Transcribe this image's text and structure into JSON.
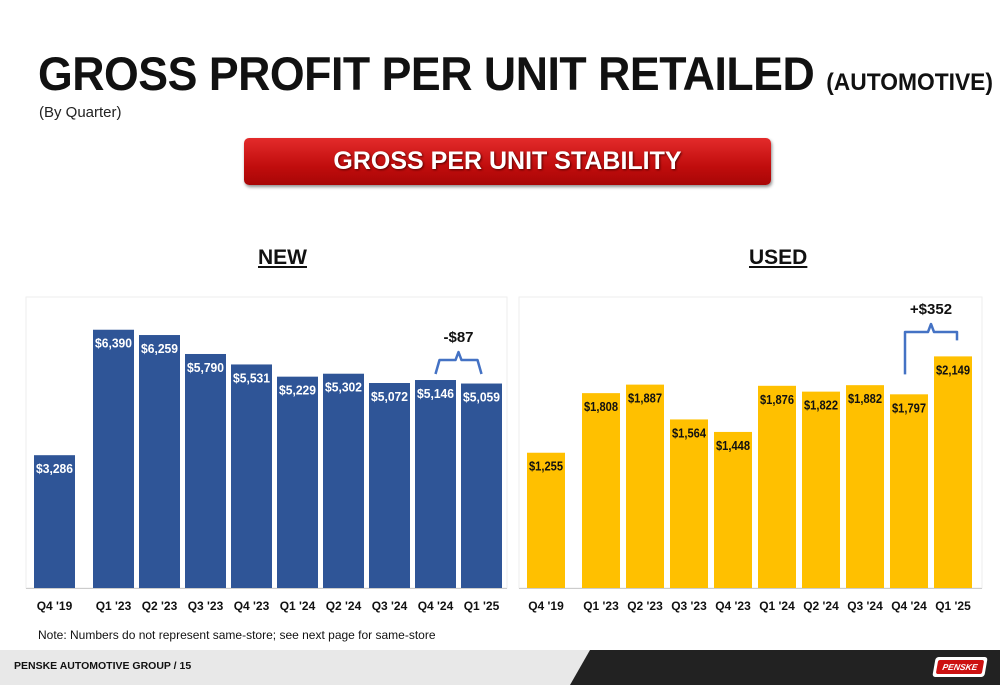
{
  "header": {
    "title": "GROSS PROFIT PER UNIT RETAILED",
    "title_suffix": "(AUTOMOTIVE)",
    "subtitle": "(By Quarter)",
    "banner": "GROSS PER UNIT STABILITY"
  },
  "chart_data": [
    {
      "type": "bar",
      "title": "NEW",
      "categories": [
        "Q4 '19",
        "Q1 '23",
        "Q2 '23",
        "Q3 '23",
        "Q4 '23",
        "Q1 '24",
        "Q2 '24",
        "Q3 '24",
        "Q4 '24",
        "Q1 '25"
      ],
      "values": [
        3286,
        6390,
        6259,
        5790,
        5531,
        5229,
        5302,
        5072,
        5146,
        5059
      ],
      "labels": [
        "$3,286",
        "$6,390",
        "$6,259",
        "$5,790",
        "$5,531",
        "$5,229",
        "$5,302",
        "$5,072",
        "$5,146",
        "$5,059"
      ],
      "color": "#2f5597",
      "annotation": {
        "text": "-$87",
        "from": "Q4 '24",
        "to": "Q1 '25"
      },
      "ylim": [
        0,
        7200
      ]
    },
    {
      "type": "bar",
      "title": "USED",
      "categories": [
        "Q4 '19",
        "Q1 '23",
        "Q2 '23",
        "Q3 '23",
        "Q4 '23",
        "Q1 '24",
        "Q2 '24",
        "Q3 '24",
        "Q4 '24",
        "Q1 '25"
      ],
      "values": [
        1255,
        1808,
        1887,
        1564,
        1448,
        1876,
        1822,
        1882,
        1797,
        2149
      ],
      "labels": [
        "$1,255",
        "$1,808",
        "$1,887",
        "$1,564",
        "$1,448",
        "$1,876",
        "$1,822",
        "$1,882",
        "$1,797",
        "$2,149"
      ],
      "color": "#ffc000",
      "annotation": {
        "text": "+$352",
        "from": "Q4 '24",
        "to": "Q1 '25"
      },
      "ylim": [
        0,
        2700
      ]
    }
  ],
  "note": "Note:  Numbers do not represent same-store; see next page for same-store",
  "footer": {
    "text": "PENSKE AUTOMOTIVE GROUP  /  15",
    "logo": "PENSKE"
  }
}
